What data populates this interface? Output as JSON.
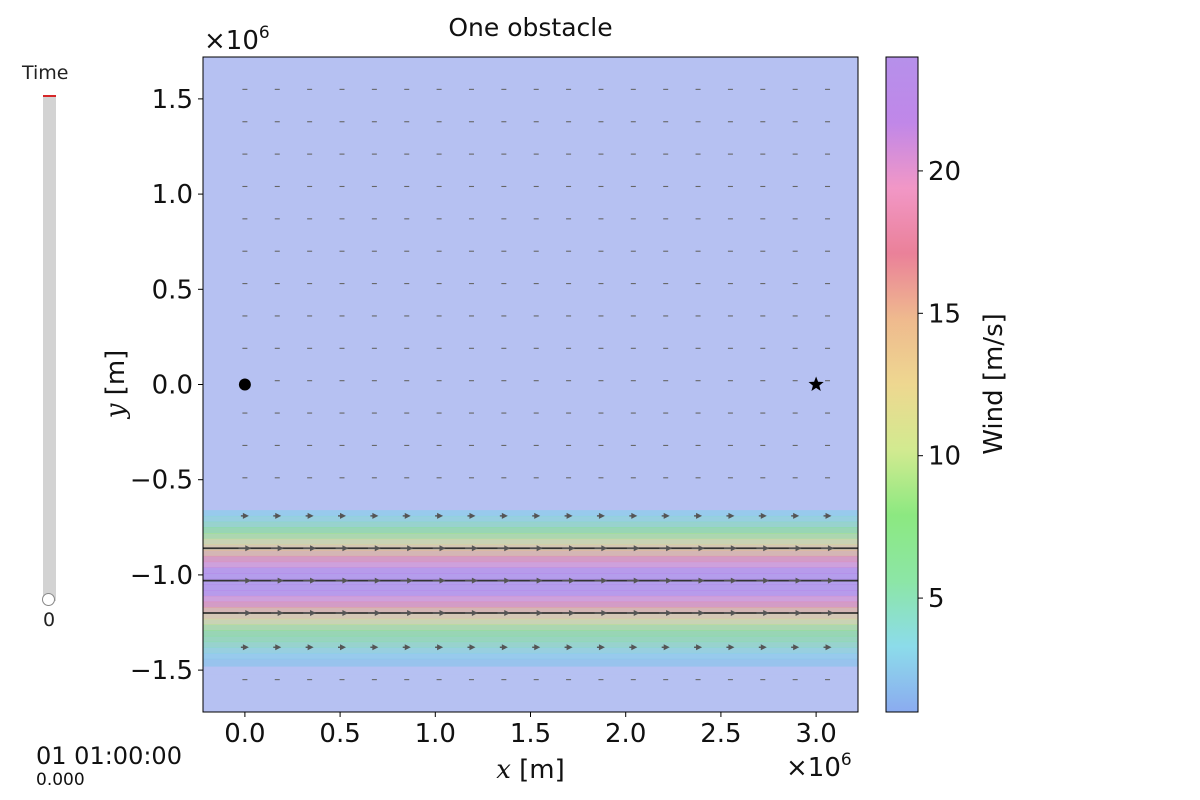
{
  "slider": {
    "label": "Time",
    "value_label": "0",
    "value": 0
  },
  "timestamp": {
    "main": "01 01:00:00",
    "sub": "0.000"
  },
  "chart_data": {
    "type": "heatmap",
    "title": "One obstacle",
    "xlabel_var": "x",
    "xlabel_unit": "[m]",
    "ylabel_var": "y",
    "ylabel_unit": "[m]",
    "x_offset_label": "×10",
    "x_offset_exp": "6",
    "y_offset_label": "×10",
    "y_offset_exp": "6",
    "xlim": [
      -0.22,
      3.22
    ],
    "ylim": [
      -1.72,
      1.72
    ],
    "x_ticks": [
      0.0,
      0.5,
      1.0,
      1.5,
      2.0,
      2.5,
      3.0
    ],
    "x_tick_labels": [
      "0.0",
      "0.5",
      "1.0",
      "1.5",
      "2.0",
      "2.5",
      "3.0"
    ],
    "y_ticks": [
      1.5,
      1.0,
      0.5,
      0.0,
      -0.5,
      -1.0,
      -1.5
    ],
    "y_tick_labels": [
      "1.5",
      "1.0",
      "0.5",
      "0.0",
      "−0.5",
      "−1.0",
      "−1.5"
    ],
    "colorbar": {
      "label": "Wind [m/s]",
      "range": [
        1,
        24
      ],
      "ticks": [
        5,
        10,
        15,
        20
      ],
      "tick_labels": [
        "5",
        "10",
        "15",
        "20"
      ],
      "colormap": [
        "#7ea2ee",
        "#80d8e8",
        "#80e39c",
        "#7fe673",
        "#cde884",
        "#ecd384",
        "#edb282",
        "#e8738e",
        "#f08cc0",
        "#b97ae6",
        "#ae84e8"
      ]
    },
    "background_wind": 2,
    "wind_profile": {
      "y": [
        -0.62,
        -0.66,
        -0.69,
        -0.72,
        -0.75,
        -0.78,
        -0.81,
        -0.84,
        -0.87,
        -0.9,
        -0.93,
        -0.96,
        -0.99,
        -1.02,
        -1.05,
        -1.08,
        -1.11,
        -1.14,
        -1.17,
        -1.2,
        -1.23,
        -1.26,
        -1.29,
        -1.32,
        -1.35,
        -1.38,
        -1.41,
        -1.44,
        -1.48
      ],
      "speed": [
        2,
        3,
        4,
        5,
        7,
        9,
        11,
        13,
        15,
        18,
        20,
        22,
        23,
        24,
        23,
        22,
        20,
        18,
        15,
        13,
        11,
        9,
        7,
        6,
        5,
        4,
        3,
        2.5,
        2
      ]
    },
    "quiver": {
      "x": [
        0.0,
        0.17,
        0.34,
        0.51,
        0.68,
        0.85,
        1.02,
        1.19,
        1.36,
        1.53,
        1.7,
        1.87,
        2.04,
        2.21,
        2.38,
        2.55,
        2.72,
        2.89,
        3.06
      ],
      "y": [
        1.55,
        1.38,
        1.21,
        1.04,
        0.87,
        0.7,
        0.53,
        0.36,
        0.19,
        0.02,
        -0.15,
        -0.32,
        -0.49,
        -0.69,
        -0.86,
        -1.03,
        -1.2,
        -1.38,
        -1.55
      ],
      "u": [
        1,
        1,
        1,
        1,
        1,
        1,
        1,
        1,
        1,
        1,
        1,
        1,
        1,
        2.5,
        4,
        4,
        4,
        2.5,
        1
      ]
    },
    "streamlines_y": [
      -0.86,
      -1.03,
      -1.2
    ],
    "start": {
      "x": 0.0,
      "y": 0.0,
      "marker": "circle"
    },
    "goal": {
      "x": 3.0,
      "y": 0.0,
      "marker": "star"
    }
  }
}
